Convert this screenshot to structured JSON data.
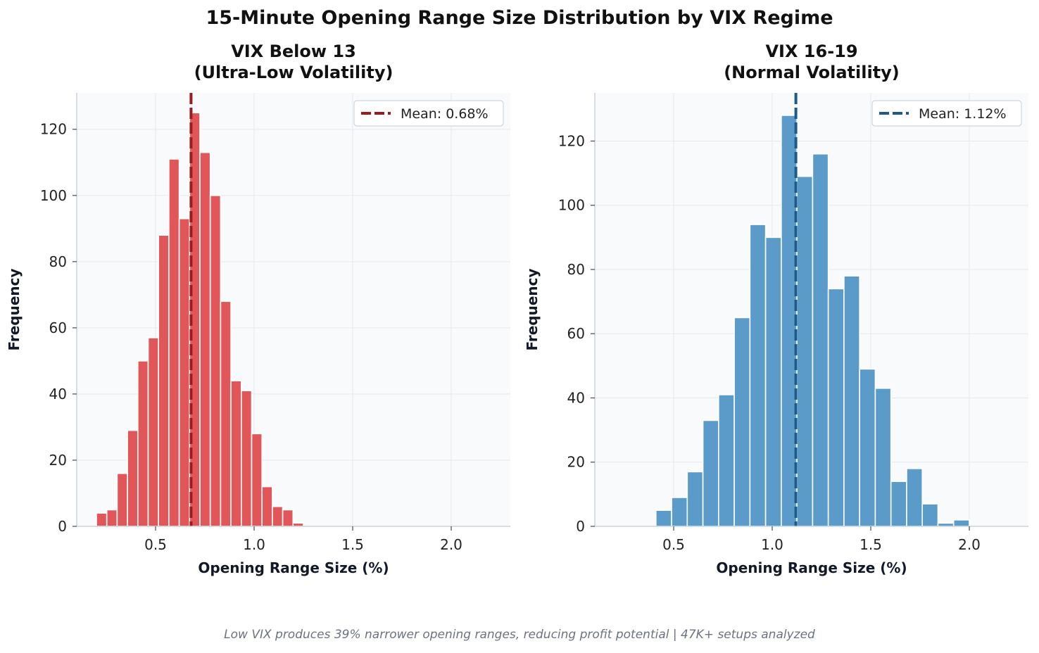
{
  "suptitle": "15-Minute Opening Range Size Distribution by VIX Regime",
  "footnote": "Low VIX produces 39% narrower opening ranges, reducing profit potential | 47K+ setups analyzed",
  "chart_data": [
    {
      "type": "bar",
      "title_line1": "VIX Below 13",
      "title_line2": "(Ultra-Low Volatility)",
      "xlabel": "Opening Range Size (%)",
      "ylabel": "Frequency",
      "xlim": [
        0.1,
        2.3
      ],
      "ylim": [
        0,
        131
      ],
      "xticks": [
        0.5,
        1.0,
        1.5,
        2.0
      ],
      "xtick_labels": [
        "0.5",
        "1.0",
        "1.5",
        "2.0"
      ],
      "yticks": [
        0,
        20,
        40,
        60,
        80,
        100,
        120
      ],
      "bin_start": 0.2,
      "bin_width": 0.0525,
      "values": [
        4,
        5,
        16,
        29,
        50,
        57,
        88,
        111,
        93,
        125,
        113,
        100,
        68,
        44,
        41,
        28,
        12,
        6,
        5,
        1
      ],
      "bar_color": "#e15759",
      "mean": 0.68,
      "mean_label": "Mean: 0.68%",
      "mean_color": "#9b1c1c",
      "legend_position": "upper right",
      "grid": true
    },
    {
      "type": "bar",
      "title_line1": "VIX 16-19",
      "title_line2": "(Normal Volatility)",
      "xlabel": "Opening Range Size (%)",
      "ylabel": "Frequency",
      "xlim": [
        0.1,
        2.3
      ],
      "ylim": [
        0,
        135
      ],
      "xticks": [
        0.5,
        1.0,
        1.5,
        2.0
      ],
      "xtick_labels": [
        "0.5",
        "1.0",
        "1.5",
        "2.0"
      ],
      "yticks": [
        0,
        20,
        40,
        60,
        80,
        100,
        120
      ],
      "bin_start": 0.41,
      "bin_width": 0.0795,
      "values": [
        5,
        9,
        17,
        33,
        41,
        65,
        94,
        90,
        128,
        109,
        116,
        74,
        78,
        49,
        43,
        14,
        18,
        7,
        1,
        2
      ],
      "bar_color": "#5b9bc9",
      "mean": 1.12,
      "mean_label": "Mean: 1.12%",
      "mean_color": "#1d5a8a",
      "legend_position": "upper right",
      "grid": true
    }
  ]
}
